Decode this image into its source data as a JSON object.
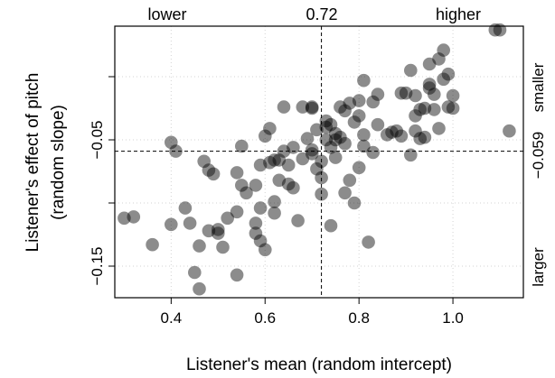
{
  "chart_data": {
    "type": "scatter",
    "xlabel": "Listener's mean (random intercept)",
    "ylabel": "Listener's effect of pitch",
    "ylabel_sub": "(random slope)",
    "xlim": [
      0.28,
      1.15
    ],
    "ylim": [
      -0.175,
      0.04
    ],
    "xticks": [
      0.4,
      0.6,
      0.8,
      1.0
    ],
    "xtick_labels": [
      "0.4",
      "0.6",
      "0.8",
      "1.0"
    ],
    "yticks": [
      -0.15,
      -0.05
    ],
    "ytick_labels": [
      "−0.15",
      "−0.05"
    ],
    "yticks_minor": [
      -0.1,
      0.0
    ],
    "grid": "dotted",
    "point_color": "#000000",
    "point_opacity": 0.45,
    "vline": {
      "x": 0.72,
      "label": "0.72"
    },
    "hline": {
      "y": -0.059,
      "label": "−0.059"
    },
    "top_labels": {
      "left": "lower",
      "right": "higher"
    },
    "right_labels": {
      "top": "smaller",
      "bottom": "larger"
    },
    "points": [
      [
        0.3,
        -0.112
      ],
      [
        0.32,
        -0.111
      ],
      [
        0.36,
        -0.133
      ],
      [
        0.4,
        -0.052
      ],
      [
        0.41,
        -0.059
      ],
      [
        0.4,
        -0.117
      ],
      [
        0.43,
        -0.104
      ],
      [
        0.44,
        -0.116
      ],
      [
        0.45,
        -0.155
      ],
      [
        0.46,
        -0.168
      ],
      [
        0.46,
        -0.134
      ],
      [
        0.47,
        -0.067
      ],
      [
        0.48,
        -0.074
      ],
      [
        0.48,
        -0.122
      ],
      [
        0.49,
        -0.077
      ],
      [
        0.5,
        -0.121
      ],
      [
        0.5,
        -0.124
      ],
      [
        0.51,
        -0.135
      ],
      [
        0.52,
        -0.112
      ],
      [
        0.54,
        -0.107
      ],
      [
        0.54,
        -0.157
      ],
      [
        0.54,
        -0.076
      ],
      [
        0.55,
        -0.086
      ],
      [
        0.55,
        -0.055
      ],
      [
        0.56,
        -0.092
      ],
      [
        0.58,
        -0.116
      ],
      [
        0.58,
        -0.124
      ],
      [
        0.58,
        -0.086
      ],
      [
        0.59,
        -0.07
      ],
      [
        0.59,
        -0.104
      ],
      [
        0.59,
        -0.13
      ],
      [
        0.6,
        -0.047
      ],
      [
        0.6,
        -0.137
      ],
      [
        0.61,
        -0.041
      ],
      [
        0.61,
        -0.068
      ],
      [
        0.62,
        -0.066
      ],
      [
        0.62,
        -0.099
      ],
      [
        0.62,
        -0.108
      ],
      [
        0.63,
        -0.066
      ],
      [
        0.63,
        -0.082
      ],
      [
        0.64,
        -0.024
      ],
      [
        0.64,
        -0.059
      ],
      [
        0.65,
        -0.07
      ],
      [
        0.65,
        -0.085
      ],
      [
        0.66,
        -0.088
      ],
      [
        0.66,
        -0.056
      ],
      [
        0.67,
        -0.114
      ],
      [
        0.68,
        -0.065
      ],
      [
        0.68,
        -0.024
      ],
      [
        0.69,
        -0.049
      ],
      [
        0.7,
        -0.024
      ],
      [
        0.7,
        -0.025
      ],
      [
        0.7,
        -0.058
      ],
      [
        0.7,
        -0.061
      ],
      [
        0.71,
        -0.073
      ],
      [
        0.71,
        -0.042
      ],
      [
        0.72,
        -0.08
      ],
      [
        0.72,
        -0.093
      ],
      [
        0.72,
        -0.067
      ],
      [
        0.73,
        -0.035
      ],
      [
        0.73,
        -0.05
      ],
      [
        0.73,
        -0.04
      ],
      [
        0.74,
        -0.038
      ],
      [
        0.74,
        -0.118
      ],
      [
        0.74,
        -0.056
      ],
      [
        0.75,
        -0.045
      ],
      [
        0.75,
        -0.05
      ],
      [
        0.75,
        -0.064
      ],
      [
        0.76,
        -0.024
      ],
      [
        0.76,
        -0.048
      ],
      [
        0.77,
        -0.027
      ],
      [
        0.77,
        -0.092
      ],
      [
        0.77,
        -0.053
      ],
      [
        0.78,
        -0.021
      ],
      [
        0.78,
        -0.082
      ],
      [
        0.79,
        -0.036
      ],
      [
        0.79,
        -0.1
      ],
      [
        0.8,
        -0.031
      ],
      [
        0.8,
        -0.072
      ],
      [
        0.8,
        -0.019
      ],
      [
        0.81,
        -0.046
      ],
      [
        0.81,
        -0.055
      ],
      [
        0.81,
        -0.003
      ],
      [
        0.82,
        -0.131
      ],
      [
        0.83,
        -0.06
      ],
      [
        0.83,
        -0.02
      ],
      [
        0.84,
        -0.014
      ],
      [
        0.84,
        -0.038
      ],
      [
        0.86,
        -0.046
      ],
      [
        0.87,
        -0.044
      ],
      [
        0.88,
        -0.043
      ],
      [
        0.89,
        -0.047
      ],
      [
        0.89,
        -0.013
      ],
      [
        0.9,
        -0.013
      ],
      [
        0.91,
        0.005
      ],
      [
        0.91,
        -0.062
      ],
      [
        0.92,
        -0.043
      ],
      [
        0.92,
        -0.031
      ],
      [
        0.92,
        -0.015
      ],
      [
        0.93,
        -0.026
      ],
      [
        0.93,
        -0.049
      ],
      [
        0.94,
        -0.025
      ],
      [
        0.94,
        -0.048
      ],
      [
        0.95,
        -0.009
      ],
      [
        0.95,
        0.01
      ],
      [
        0.95,
        -0.006
      ],
      [
        0.96,
        -0.014
      ],
      [
        0.96,
        -0.026
      ],
      [
        0.97,
        0.014
      ],
      [
        0.97,
        -0.041
      ],
      [
        0.98,
        -0.002
      ],
      [
        0.98,
        0.021
      ],
      [
        0.99,
        -0.024
      ],
      [
        0.99,
        0.002
      ],
      [
        1.0,
        -0.015
      ],
      [
        1.0,
        -0.025
      ],
      [
        1.09,
        0.037
      ],
      [
        1.1,
        0.037
      ],
      [
        1.12,
        -0.043
      ]
    ]
  }
}
